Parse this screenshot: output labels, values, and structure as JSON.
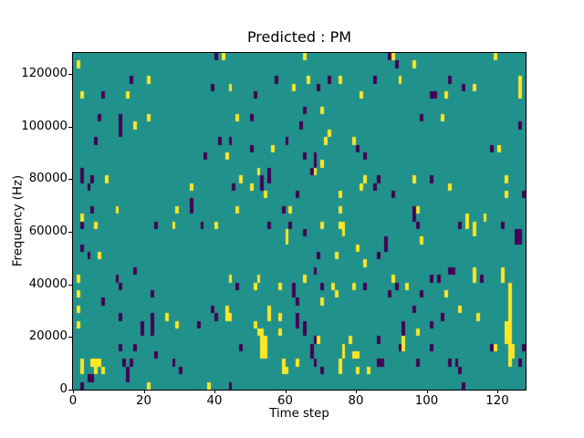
{
  "chart_data": {
    "type": "heatmap",
    "title": "Predicted : PM",
    "xlabel": "Time step",
    "ylabel": "Frequency (Hz)",
    "x_range": [
      0,
      128
    ],
    "y_range": [
      0,
      128000
    ],
    "x_ticks": [
      0,
      20,
      40,
      60,
      80,
      100,
      120
    ],
    "y_ticks": [
      0,
      20000,
      40000,
      60000,
      80000,
      100000,
      120000
    ],
    "grid": {
      "time_steps": 128,
      "freq_bins": 44
    },
    "legend": "none",
    "colors": {
      "background_value_color": "#21918c",
      "low_value_color": "#440154",
      "high_value_color": "#fde725",
      "axes_color": "#000000",
      "figure_bg": "#ffffff"
    },
    "cells_note": "cells are [time_step, freq_bin_from_top, height_in_bins]; bin 0 = top (~128 kHz), bin 43 = bottom (0 Hz)",
    "cells_yellow": [
      [
        1,
        1,
        1
      ],
      [
        42,
        0,
        1
      ],
      [
        21,
        3,
        1
      ],
      [
        2,
        5,
        1
      ],
      [
        15,
        5,
        1
      ],
      [
        21,
        8,
        1
      ],
      [
        17,
        9,
        1
      ],
      [
        9,
        16,
        1
      ],
      [
        33,
        17,
        1
      ],
      [
        12,
        20,
        1
      ],
      [
        29,
        20,
        1
      ],
      [
        2,
        21,
        1
      ],
      [
        65,
        0,
        1
      ],
      [
        66,
        3,
        1
      ],
      [
        75,
        3,
        1
      ],
      [
        44,
        4,
        1
      ],
      [
        62,
        4,
        1
      ],
      [
        81,
        5,
        1
      ],
      [
        70,
        7,
        1
      ],
      [
        46,
        8,
        1
      ],
      [
        72,
        10,
        1
      ],
      [
        71,
        11,
        1
      ],
      [
        79,
        11,
        1
      ],
      [
        56,
        12,
        1
      ],
      [
        43,
        13,
        1
      ],
      [
        70,
        14,
        1
      ],
      [
        52,
        15,
        1
      ],
      [
        68,
        15,
        1
      ],
      [
        47,
        16,
        1
      ],
      [
        82,
        16,
        1
      ],
      [
        50,
        17,
        1
      ],
      [
        81,
        17,
        1
      ],
      [
        54,
        18,
        1
      ],
      [
        75,
        18,
        1
      ],
      [
        46,
        20,
        1
      ],
      [
        61,
        20,
        1
      ],
      [
        75,
        20,
        1
      ],
      [
        90,
        0,
        1
      ],
      [
        119,
        0,
        1
      ],
      [
        96,
        1,
        1
      ],
      [
        92,
        3,
        1
      ],
      [
        126,
        3,
        1
      ],
      [
        126,
        4,
        2
      ],
      [
        113,
        4,
        1
      ],
      [
        105,
        5,
        1
      ],
      [
        104,
        8,
        1
      ],
      [
        120,
        12,
        1
      ],
      [
        96,
        16,
        1
      ],
      [
        122,
        16,
        1
      ],
      [
        106,
        17,
        1
      ],
      [
        122,
        18,
        1
      ],
      [
        97,
        20,
        1
      ],
      [
        111,
        21,
        1
      ],
      [
        116,
        21,
        1
      ],
      [
        6,
        22,
        1
      ],
      [
        28,
        22,
        1
      ],
      [
        40,
        22,
        1
      ],
      [
        7,
        26,
        1
      ],
      [
        1,
        29,
        1
      ],
      [
        1,
        31,
        1
      ],
      [
        1,
        33,
        1
      ],
      [
        26,
        34,
        1
      ],
      [
        1,
        35,
        1
      ],
      [
        29,
        35,
        1
      ],
      [
        2,
        40,
        2
      ],
      [
        5,
        40,
        1
      ],
      [
        6,
        40,
        1
      ],
      [
        7,
        40,
        1
      ],
      [
        6,
        41,
        1
      ],
      [
        8,
        41,
        1
      ],
      [
        21,
        43,
        1
      ],
      [
        38,
        43,
        1
      ],
      [
        70,
        22,
        1
      ],
      [
        75,
        22,
        1
      ],
      [
        76,
        22,
        2
      ],
      [
        60,
        23,
        2
      ],
      [
        80,
        25,
        1
      ],
      [
        74,
        26,
        1
      ],
      [
        82,
        27,
        1
      ],
      [
        44,
        29,
        1
      ],
      [
        52,
        29,
        1
      ],
      [
        65,
        29,
        1
      ],
      [
        51,
        30,
        1
      ],
      [
        58,
        30,
        1
      ],
      [
        73,
        30,
        1
      ],
      [
        79,
        30,
        1
      ],
      [
        74,
        31,
        1
      ],
      [
        70,
        32,
        1
      ],
      [
        43,
        33,
        2
      ],
      [
        44,
        34,
        1
      ],
      [
        55,
        33,
        2
      ],
      [
        58,
        34,
        1
      ],
      [
        51,
        35,
        1
      ],
      [
        52,
        36,
        1
      ],
      [
        53,
        36,
        2
      ],
      [
        54,
        37,
        2
      ],
      [
        53,
        38,
        2
      ],
      [
        54,
        39,
        1
      ],
      [
        58,
        36,
        1
      ],
      [
        69,
        37,
        1
      ],
      [
        78,
        37,
        1
      ],
      [
        76,
        38,
        2
      ],
      [
        80,
        39,
        1
      ],
      [
        79,
        39,
        1
      ],
      [
        59,
        40,
        2
      ],
      [
        63,
        40,
        1
      ],
      [
        60,
        41,
        1
      ],
      [
        75,
        40,
        2
      ],
      [
        80,
        41,
        1
      ],
      [
        83,
        41,
        1
      ],
      [
        111,
        22,
        1
      ],
      [
        113,
        22,
        2
      ],
      [
        98,
        24,
        1
      ],
      [
        113,
        28,
        2
      ],
      [
        121,
        28,
        2
      ],
      [
        90,
        29,
        1
      ],
      [
        94,
        30,
        1
      ],
      [
        105,
        31,
        1
      ],
      [
        109,
        33,
        1
      ],
      [
        114,
        34,
        1
      ],
      [
        97,
        36,
        1
      ],
      [
        93,
        37,
        2
      ],
      [
        119,
        38,
        1
      ],
      [
        123,
        30,
        6
      ],
      [
        122,
        35,
        3
      ],
      [
        123,
        36,
        5
      ],
      [
        124,
        38,
        2
      ]
    ],
    "cells_purple": [
      [
        16,
        3,
        1
      ],
      [
        39,
        4,
        1
      ],
      [
        8,
        5,
        1
      ],
      [
        7,
        8,
        1
      ],
      [
        13,
        8,
        3
      ],
      [
        6,
        11,
        1
      ],
      [
        41,
        11,
        1
      ],
      [
        37,
        13,
        1
      ],
      [
        2,
        15,
        2
      ],
      [
        5,
        16,
        1
      ],
      [
        4,
        17,
        1
      ],
      [
        33,
        19,
        2
      ],
      [
        5,
        20,
        1
      ],
      [
        40,
        0,
        1
      ],
      [
        57,
        3,
        1
      ],
      [
        72,
        3,
        1
      ],
      [
        85,
        3,
        1
      ],
      [
        69,
        4,
        1
      ],
      [
        51,
        5,
        1
      ],
      [
        65,
        7,
        1
      ],
      [
        50,
        8,
        1
      ],
      [
        64,
        9,
        1
      ],
      [
        44,
        11,
        1
      ],
      [
        60,
        11,
        1
      ],
      [
        50,
        12,
        1
      ],
      [
        80,
        12,
        1
      ],
      [
        82,
        13,
        1
      ],
      [
        65,
        13,
        1
      ],
      [
        68,
        13,
        2
      ],
      [
        67,
        15,
        1
      ],
      [
        55,
        15,
        2
      ],
      [
        53,
        16,
        1
      ],
      [
        45,
        17,
        1
      ],
      [
        53,
        17,
        1
      ],
      [
        63,
        18,
        1
      ],
      [
        59,
        20,
        1
      ],
      [
        85,
        17,
        1
      ],
      [
        89,
        0,
        1
      ],
      [
        91,
        1,
        1
      ],
      [
        106,
        3,
        1
      ],
      [
        110,
        4,
        1
      ],
      [
        101,
        5,
        1
      ],
      [
        102,
        5,
        1
      ],
      [
        98,
        8,
        1
      ],
      [
        126,
        9,
        1
      ],
      [
        118,
        12,
        1
      ],
      [
        86,
        16,
        1
      ],
      [
        101,
        16,
        1
      ],
      [
        90,
        18,
        1
      ],
      [
        127,
        18,
        1
      ],
      [
        96,
        20,
        2
      ],
      [
        2,
        22,
        1
      ],
      [
        23,
        22,
        1
      ],
      [
        36,
        22,
        1
      ],
      [
        2,
        25,
        1
      ],
      [
        4,
        26,
        1
      ],
      [
        17,
        28,
        1
      ],
      [
        12,
        29,
        1
      ],
      [
        13,
        30,
        1
      ],
      [
        22,
        31,
        1
      ],
      [
        8,
        32,
        1
      ],
      [
        39,
        33,
        1
      ],
      [
        40,
        34,
        1
      ],
      [
        13,
        34,
        1
      ],
      [
        22,
        34,
        3
      ],
      [
        19,
        35,
        2
      ],
      [
        35,
        35,
        1
      ],
      [
        13,
        38,
        1
      ],
      [
        17,
        38,
        1
      ],
      [
        23,
        39,
        1
      ],
      [
        28,
        40,
        1
      ],
      [
        14,
        40,
        1
      ],
      [
        16,
        40,
        1
      ],
      [
        15,
        41,
        1
      ],
      [
        4,
        42,
        1
      ],
      [
        5,
        42,
        1
      ],
      [
        15,
        42,
        1
      ],
      [
        30,
        41,
        1
      ],
      [
        2,
        43,
        1
      ],
      [
        55,
        22,
        1
      ],
      [
        61,
        22,
        1
      ],
      [
        65,
        23,
        1
      ],
      [
        69,
        26,
        1
      ],
      [
        68,
        28,
        1
      ],
      [
        46,
        30,
        1
      ],
      [
        62,
        30,
        2
      ],
      [
        70,
        30,
        1
      ],
      [
        82,
        30,
        1
      ],
      [
        63,
        32,
        1
      ],
      [
        63,
        34,
        1
      ],
      [
        63,
        35,
        1
      ],
      [
        65,
        35,
        2
      ],
      [
        68,
        37,
        1
      ],
      [
        67,
        38,
        2
      ],
      [
        68,
        40,
        1
      ],
      [
        47,
        38,
        1
      ],
      [
        70,
        41,
        1
      ],
      [
        44,
        43,
        1
      ],
      [
        97,
        22,
        1
      ],
      [
        109,
        22,
        1
      ],
      [
        121,
        22,
        1
      ],
      [
        88,
        24,
        2
      ],
      [
        125,
        23,
        1
      ],
      [
        126,
        23,
        1
      ],
      [
        125,
        24,
        1
      ],
      [
        126,
        24,
        1
      ],
      [
        86,
        26,
        1
      ],
      [
        106,
        28,
        1
      ],
      [
        107,
        28,
        1
      ],
      [
        101,
        29,
        1
      ],
      [
        103,
        29,
        1
      ],
      [
        115,
        29,
        1
      ],
      [
        91,
        30,
        1
      ],
      [
        89,
        31,
        1
      ],
      [
        98,
        31,
        1
      ],
      [
        96,
        33,
        1
      ],
      [
        104,
        34,
        1
      ],
      [
        93,
        35,
        2
      ],
      [
        101,
        35,
        1
      ],
      [
        86,
        37,
        1
      ],
      [
        92,
        38,
        1
      ],
      [
        101,
        38,
        1
      ],
      [
        118,
        38,
        1
      ],
      [
        127,
        38,
        1
      ],
      [
        86,
        40,
        1
      ],
      [
        87,
        40,
        1
      ],
      [
        97,
        40,
        1
      ],
      [
        106,
        40,
        1
      ],
      [
        108,
        40,
        1
      ],
      [
        109,
        41,
        1
      ],
      [
        126,
        40,
        1
      ],
      [
        110,
        43,
        1
      ]
    ]
  }
}
